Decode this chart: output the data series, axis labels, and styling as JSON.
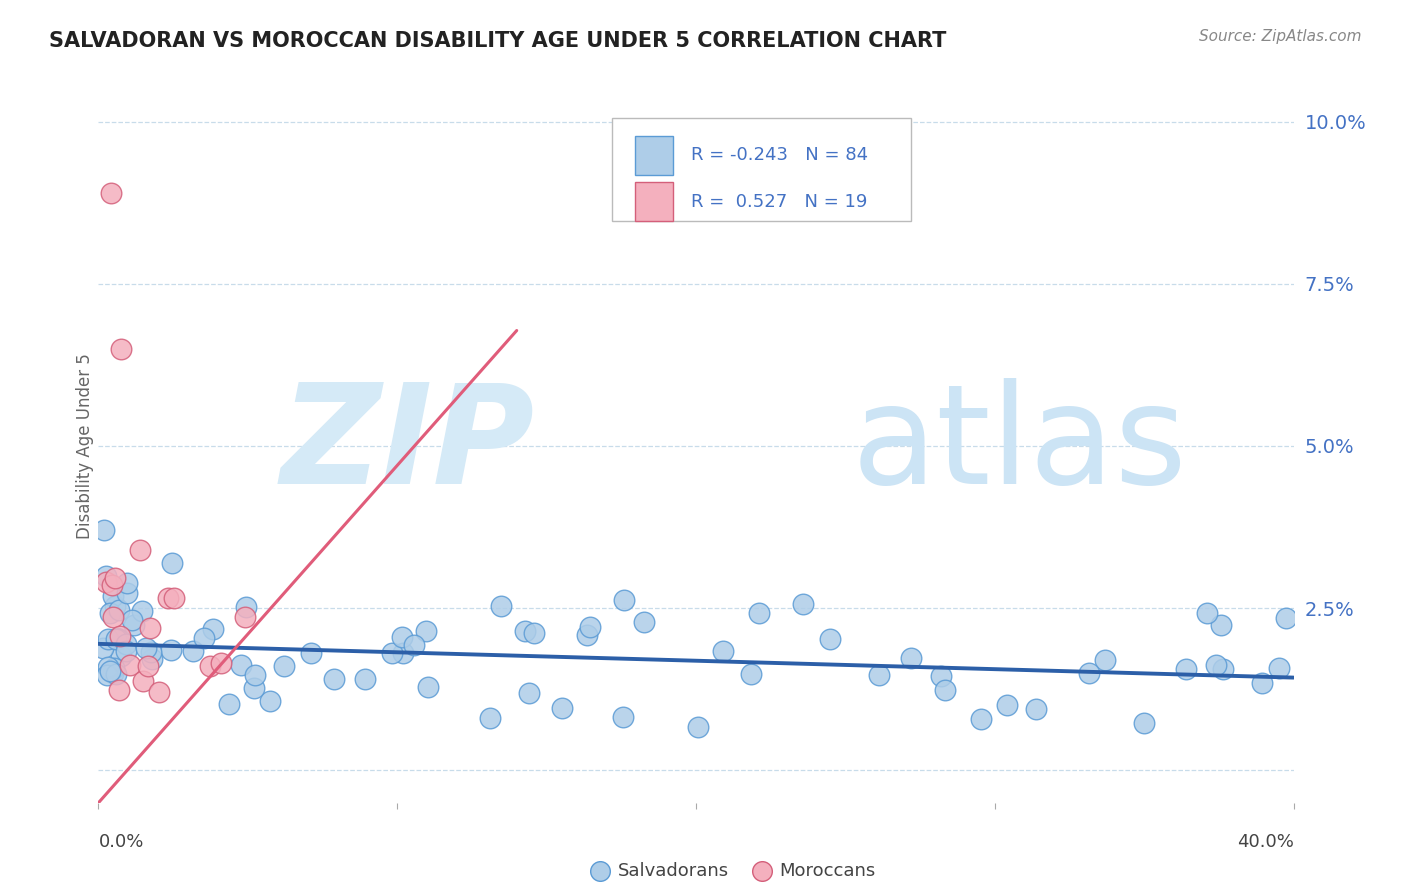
{
  "title": "SALVADORAN VS MOROCCAN DISABILITY AGE UNDER 5 CORRELATION CHART",
  "source": "Source: ZipAtlas.com",
  "ylabel": "Disability Age Under 5",
  "xlim": [
    0.0,
    0.4
  ],
  "ylim": [
    -0.005,
    0.105
  ],
  "ytick_vals": [
    0.0,
    0.025,
    0.05,
    0.075,
    0.1
  ],
  "ytick_labels": [
    "",
    "2.5%",
    "5.0%",
    "7.5%",
    "10.0%"
  ],
  "salv_color_fill": "#aecde8",
  "salv_color_edge": "#5b9bd5",
  "moroc_color_fill": "#f4b0be",
  "moroc_color_edge": "#d45f7a",
  "salv_trend_color": "#2c5fa8",
  "moroc_trend_color": "#e05c7a",
  "grid_color": "#c8dcea",
  "title_color": "#222222",
  "source_color": "#888888",
  "axis_label_color": "#4472c4",
  "ylabel_color": "#666666",
  "leg_text_color": "#4472c4",
  "watermark_zip_color": "#d2e8f5",
  "watermark_atlas_color": "#c5def0",
  "salv_trend_intercept": 0.0195,
  "salv_trend_slope": -0.013,
  "moroc_trend_intercept": -0.005,
  "moroc_trend_slope": 0.52,
  "moroc_trend_x_end": 0.14
}
